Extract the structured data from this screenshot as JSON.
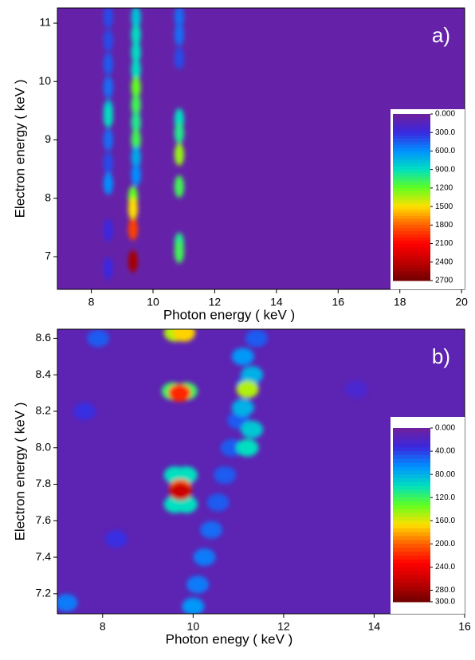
{
  "chart_data": [
    {
      "type": "heatmap",
      "panel_label": "a)",
      "xlabel": "Photon energy ( keV )",
      "ylabel": "Electron energy ( keV )",
      "xlim": [
        6.9,
        20.1
      ],
      "ylim": [
        6.44,
        11.26
      ],
      "xticks": [
        8,
        10,
        12,
        14,
        16,
        18,
        20
      ],
      "yticks": [
        7,
        8,
        9,
        10,
        11
      ],
      "background": 60,
      "spots": {
        "x": [
          8.55,
          8.55,
          8.55,
          8.55,
          8.55,
          8.55,
          8.55,
          8.55,
          8.55,
          8.55,
          8.55,
          9.45,
          9.45,
          9.45,
          9.45,
          9.45,
          9.45,
          9.45,
          9.45,
          9.45,
          9.45,
          9.35,
          9.35,
          9.35,
          9.35,
          10.85,
          10.85,
          10.85,
          10.85,
          10.85,
          10.85,
          10.85,
          10.85,
          10.85
        ],
        "y": [
          11.1,
          10.7,
          10.3,
          9.9,
          9.5,
          9.4,
          9.0,
          8.6,
          8.25,
          7.45,
          6.8,
          11.1,
          10.8,
          10.5,
          10.2,
          9.9,
          9.6,
          9.3,
          9.0,
          8.7,
          8.4,
          8.02,
          7.82,
          7.47,
          6.92,
          11.1,
          10.8,
          10.4,
          9.35,
          9.12,
          8.75,
          8.2,
          7.22,
          7.08
        ],
        "values": [
          400,
          400,
          450,
          500,
          800,
          900,
          500,
          400,
          600,
          300,
          300,
          800,
          900,
          900,
          900,
          1200,
          1100,
          1000,
          1100,
          700,
          600,
          1200,
          1500,
          1900,
          2500,
          500,
          500,
          400,
          900,
          1000,
          1300,
          1100,
          1000,
          1100
        ]
      },
      "colorbar": {
        "lim": [
          0,
          2700
        ],
        "ticks": [
          {
            "value": 0,
            "label": "0.000"
          },
          {
            "value": 300,
            "label": "300.0"
          },
          {
            "value": 600,
            "label": "600.0"
          },
          {
            "value": 900,
            "label": "900.0"
          },
          1200,
          1500,
          1800,
          2100,
          2400,
          2700
        ]
      }
    },
    {
      "type": "heatmap",
      "panel_label": "b)",
      "xlabel": "Photon enegy ( keV )",
      "ylabel": "Electron energy ( keV )",
      "xlim": [
        7,
        16
      ],
      "ylim": [
        7.09,
        8.65
      ],
      "xticks": [
        8,
        10,
        12,
        14,
        16
      ],
      "yticks": [
        7.2,
        7.4,
        7.6,
        7.8,
        {
          "value": 8,
          "label": "8.0"
        },
        8.2,
        8.4,
        8.6
      ],
      "background": 12,
      "spots": {
        "x": [
          7.9,
          7.6,
          8.3,
          7.2,
          13.6,
          10.0,
          10.1,
          10.25,
          10.4,
          10.55,
          10.7,
          10.85,
          11.0,
          11.2,
          11.4,
          11.1,
          11.3,
          11.2,
          11.1,
          11.3,
          11.2,
          9.6,
          9.85,
          9.6,
          9.85,
          9.72,
          9.72,
          9.55,
          9.85,
          9.7,
          9.6,
          9.8
        ],
        "y": [
          8.6,
          8.2,
          7.5,
          7.15,
          8.32,
          7.13,
          7.25,
          7.4,
          7.55,
          7.7,
          7.85,
          8.0,
          8.15,
          8.35,
          8.6,
          8.5,
          8.4,
          8.32,
          8.22,
          8.1,
          8.0,
          7.85,
          7.85,
          7.69,
          7.69,
          7.78,
          7.76,
          8.31,
          8.31,
          8.3,
          8.63,
          8.63
        ],
        "values": [
          50,
          35,
          35,
          60,
          25,
          70,
          60,
          60,
          55,
          50,
          50,
          50,
          50,
          50,
          50,
          70,
          80,
          150,
          80,
          90,
          100,
          100,
          100,
          100,
          100,
          200,
          260,
          120,
          120,
          220,
          150,
          170
        ]
      },
      "colorbar": {
        "lim": [
          0,
          300
        ],
        "ticks": [
          {
            "value": 0,
            "label": "0.000"
          },
          {
            "value": 40,
            "label": "40.00"
          },
          {
            "value": 80,
            "label": "80.00"
          },
          {
            "value": 120,
            "label": "120.0"
          },
          {
            "value": 160,
            "label": "160.0"
          },
          {
            "value": 200,
            "label": "200.0"
          },
          {
            "value": 240,
            "label": "240.0"
          },
          {
            "value": 280,
            "label": "280.0"
          },
          {
            "value": 300,
            "label": "300.0"
          }
        ]
      }
    }
  ]
}
